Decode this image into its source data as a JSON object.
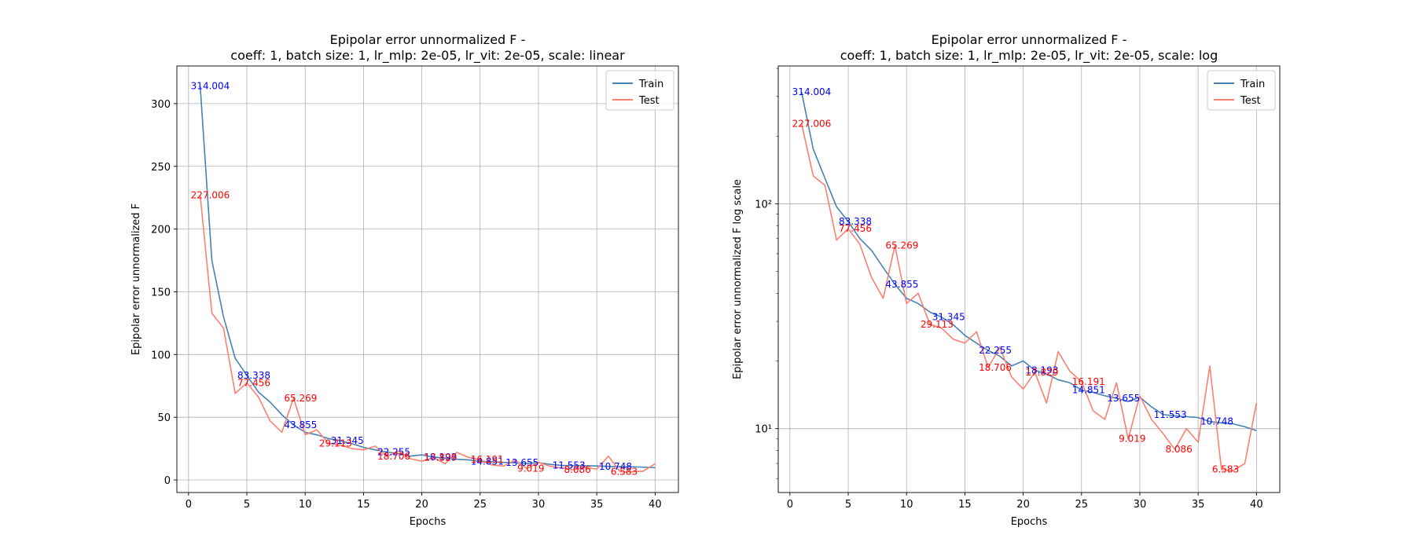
{
  "chart_data": [
    {
      "type": "line",
      "title": "Epipolar error unnormalized F -\ncoeff: 1, batch size: 1, lr_mlp: 2e-05, lr_vit: 2e-05, scale: linear",
      "xlabel": "Epochs",
      "ylabel": "Epipolar error unnormalized F",
      "xlim": [
        -1,
        42
      ],
      "ylim": [
        -10,
        330
      ],
      "yscale": "linear",
      "xticks": [
        0,
        5,
        10,
        15,
        20,
        25,
        30,
        35,
        40
      ],
      "yticks": [
        0,
        50,
        100,
        150,
        200,
        250,
        300
      ],
      "grid": true,
      "legend": "top-right",
      "series": [
        {
          "name": "Train",
          "color": "#4682b4",
          "x": [
            1,
            2,
            3,
            4,
            5,
            6,
            7,
            8,
            9,
            10,
            11,
            12,
            13,
            14,
            15,
            16,
            17,
            18,
            19,
            20,
            21,
            22,
            23,
            24,
            25,
            26,
            27,
            28,
            29,
            30,
            31,
            32,
            33,
            34,
            35,
            36,
            37,
            38,
            39,
            40
          ],
          "y": [
            314.004,
            175,
            130,
            97,
            83.338,
            70,
            62,
            52,
            43.855,
            38,
            36,
            33,
            31.345,
            29,
            26,
            24,
            22.255,
            21,
            19,
            20,
            18.193,
            17.5,
            16.5,
            16,
            14.851,
            14.5,
            14,
            13.655,
            13.2,
            13.8,
            12.5,
            11.553,
            11.4,
            11.3,
            11.2,
            10.748,
            10.6,
            10.5,
            10.2,
            9.8
          ]
        },
        {
          "name": "Test",
          "color": "#fa8072",
          "x": [
            1,
            2,
            3,
            4,
            5,
            6,
            7,
            8,
            9,
            10,
            11,
            12,
            13,
            14,
            15,
            16,
            17,
            18,
            19,
            20,
            21,
            22,
            23,
            24,
            25,
            26,
            27,
            28,
            29,
            30,
            31,
            32,
            33,
            34,
            35,
            36,
            37,
            38,
            39,
            40
          ],
          "y": [
            227.006,
            133,
            121,
            69,
            77.456,
            66,
            47,
            38,
            65.269,
            36,
            40,
            29.113,
            28,
            25,
            24,
            27,
            18.706,
            23,
            17,
            15,
            17.829,
            13,
            22,
            18,
            16.191,
            12,
            11,
            16,
            9.019,
            14,
            11,
            9.5,
            8.086,
            10,
            8.7,
            19,
            6.583,
            6.5,
            7,
            13
          ]
        }
      ],
      "annotations": [
        {
          "text": "314.004",
          "x": 1,
          "y": 314.004,
          "series": "Train"
        },
        {
          "text": "83.338",
          "x": 5,
          "y": 83.338,
          "series": "Train"
        },
        {
          "text": "43.855",
          "x": 9,
          "y": 43.855,
          "series": "Train"
        },
        {
          "text": "31.345",
          "x": 13,
          "y": 31.345,
          "series": "Train"
        },
        {
          "text": "22.255",
          "x": 17,
          "y": 22.255,
          "series": "Train"
        },
        {
          "text": "18.193",
          "x": 21,
          "y": 18.193,
          "series": "Train"
        },
        {
          "text": "14.851",
          "x": 25,
          "y": 14.851,
          "series": "Train"
        },
        {
          "text": "13.655",
          "x": 28,
          "y": 13.655,
          "series": "Train"
        },
        {
          "text": "11.553",
          "x": 32,
          "y": 11.553,
          "series": "Train"
        },
        {
          "text": "10.748",
          "x": 36,
          "y": 10.748,
          "series": "Train"
        },
        {
          "text": "227.006",
          "x": 1,
          "y": 227.006,
          "series": "Test"
        },
        {
          "text": "77.456",
          "x": 5,
          "y": 77.456,
          "series": "Test"
        },
        {
          "text": "65.269",
          "x": 9,
          "y": 65.269,
          "series": "Test"
        },
        {
          "text": "29.113",
          "x": 12,
          "y": 29.113,
          "series": "Test"
        },
        {
          "text": "18.706",
          "x": 17,
          "y": 18.706,
          "series": "Test"
        },
        {
          "text": "17.829",
          "x": 21,
          "y": 17.829,
          "series": "Test"
        },
        {
          "text": "16.191",
          "x": 25,
          "y": 16.191,
          "series": "Test"
        },
        {
          "text": "9.019",
          "x": 29,
          "y": 9.019,
          "series": "Test"
        },
        {
          "text": "8.086",
          "x": 33,
          "y": 8.086,
          "series": "Test"
        },
        {
          "text": "6.583",
          "x": 37,
          "y": 6.583,
          "series": "Test"
        }
      ]
    },
    {
      "type": "line",
      "title": "Epipolar error unnormalized F -\ncoeff: 1, batch size: 1, lr_mlp: 2e-05, lr_vit: 2e-05, scale: log",
      "xlabel": "Epochs",
      "ylabel": "Epipolar error unnormalized F log scale",
      "xlim": [
        -1,
        42
      ],
      "ylim": [
        5.2,
        410
      ],
      "yscale": "log",
      "xticks": [
        0,
        5,
        10,
        15,
        20,
        25,
        30,
        35,
        40
      ],
      "yticks": [
        10,
        100
      ],
      "ytick_labels": [
        "10¹",
        "10²"
      ],
      "grid": true,
      "legend": "top-right",
      "series": [
        {
          "name": "Train",
          "color": "#4682b4",
          "x": [
            1,
            2,
            3,
            4,
            5,
            6,
            7,
            8,
            9,
            10,
            11,
            12,
            13,
            14,
            15,
            16,
            17,
            18,
            19,
            20,
            21,
            22,
            23,
            24,
            25,
            26,
            27,
            28,
            29,
            30,
            31,
            32,
            33,
            34,
            35,
            36,
            37,
            38,
            39,
            40
          ],
          "y": [
            314.004,
            175,
            130,
            97,
            83.338,
            70,
            62,
            52,
            43.855,
            38,
            36,
            33,
            31.345,
            29,
            26,
            24,
            22.255,
            21,
            19,
            20,
            18.193,
            17.5,
            16.5,
            16,
            14.851,
            14.5,
            14,
            13.655,
            13.2,
            13.8,
            12.5,
            11.553,
            11.4,
            11.3,
            11.2,
            10.748,
            10.6,
            10.5,
            10.2,
            9.8
          ]
        },
        {
          "name": "Test",
          "color": "#fa8072",
          "x": [
            1,
            2,
            3,
            4,
            5,
            6,
            7,
            8,
            9,
            10,
            11,
            12,
            13,
            14,
            15,
            16,
            17,
            18,
            19,
            20,
            21,
            22,
            23,
            24,
            25,
            26,
            27,
            28,
            29,
            30,
            31,
            32,
            33,
            34,
            35,
            36,
            37,
            38,
            39,
            40
          ],
          "y": [
            227.006,
            133,
            121,
            69,
            77.456,
            66,
            47,
            38,
            65.269,
            36,
            40,
            29.113,
            28,
            25,
            24,
            27,
            18.706,
            23,
            17,
            15,
            17.829,
            13,
            22,
            18,
            16.191,
            12,
            11,
            16,
            9.019,
            14,
            11,
            9.5,
            8.086,
            10,
            8.7,
            19,
            6.583,
            6.5,
            7,
            13
          ]
        }
      ],
      "annotations": [
        {
          "text": "314.004",
          "x": 1,
          "y": 314.004,
          "series": "Train"
        },
        {
          "text": "83.338",
          "x": 5,
          "y": 83.338,
          "series": "Train"
        },
        {
          "text": "43.855",
          "x": 9,
          "y": 43.855,
          "series": "Train"
        },
        {
          "text": "31.345",
          "x": 13,
          "y": 31.345,
          "series": "Train"
        },
        {
          "text": "22.255",
          "x": 17,
          "y": 22.255,
          "series": "Train"
        },
        {
          "text": "18.193",
          "x": 21,
          "y": 18.193,
          "series": "Train"
        },
        {
          "text": "14.851",
          "x": 25,
          "y": 14.851,
          "series": "Train"
        },
        {
          "text": "13.655",
          "x": 28,
          "y": 13.655,
          "series": "Train"
        },
        {
          "text": "11.553",
          "x": 32,
          "y": 11.553,
          "series": "Train"
        },
        {
          "text": "10.748",
          "x": 36,
          "y": 10.748,
          "series": "Train"
        },
        {
          "text": "227.006",
          "x": 1,
          "y": 227.006,
          "series": "Test"
        },
        {
          "text": "77.456",
          "x": 5,
          "y": 77.456,
          "series": "Test"
        },
        {
          "text": "65.269",
          "x": 9,
          "y": 65.269,
          "series": "Test"
        },
        {
          "text": "29.113",
          "x": 12,
          "y": 29.113,
          "series": "Test"
        },
        {
          "text": "18.706",
          "x": 17,
          "y": 18.706,
          "series": "Test"
        },
        {
          "text": "17.829",
          "x": 21,
          "y": 17.829,
          "series": "Test"
        },
        {
          "text": "16.191",
          "x": 25,
          "y": 16.191,
          "series": "Test"
        },
        {
          "text": "9.019",
          "x": 29,
          "y": 9.019,
          "series": "Test"
        },
        {
          "text": "8.086",
          "x": 33,
          "y": 8.086,
          "series": "Test"
        },
        {
          "text": "6.583",
          "x": 37,
          "y": 6.583,
          "series": "Test"
        }
      ]
    }
  ]
}
